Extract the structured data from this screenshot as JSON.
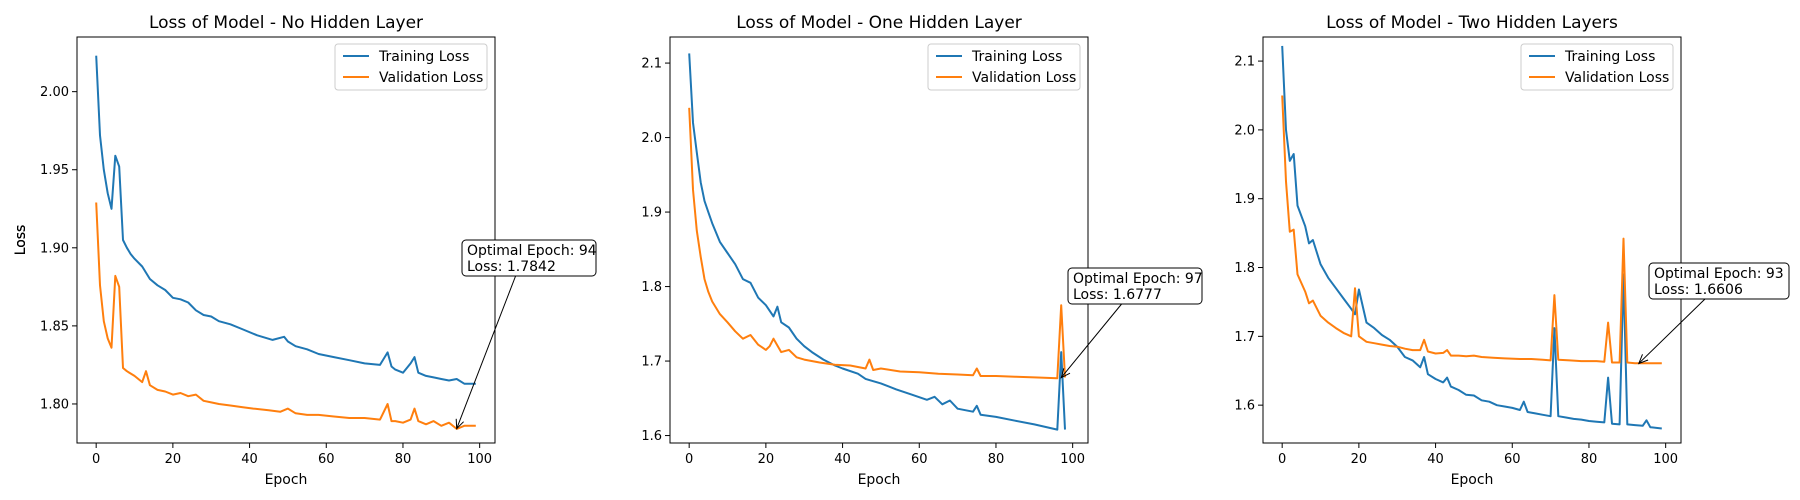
{
  "colors": {
    "training": "#1f77b4",
    "validation": "#ff7f0e"
  },
  "chart_data": [
    {
      "type": "line",
      "title": "Loss of Model - No Hidden Layer",
      "xlabel": "Epoch",
      "ylabel": "Loss",
      "xlim": [
        -5,
        104
      ],
      "ylim": [
        1.775,
        2.035
      ],
      "xticks": [
        0,
        20,
        40,
        60,
        80,
        100
      ],
      "xtick_labels": [
        "0",
        "20",
        "40",
        "60",
        "80",
        "100"
      ],
      "yticks": [
        1.8,
        1.85,
        1.9,
        1.95,
        2.0
      ],
      "ytick_labels": [
        "1.80",
        "1.85",
        "1.90",
        "1.95",
        "2.00"
      ],
      "legend": "top-right",
      "series": [
        {
          "name": "Training Loss",
          "x": [
            0,
            1,
            2,
            3,
            4,
            5,
            6,
            7,
            8,
            9,
            10,
            12,
            14,
            16,
            18,
            20,
            22,
            24,
            26,
            28,
            30,
            32,
            35,
            38,
            42,
            46,
            49,
            50,
            52,
            55,
            58,
            62,
            66,
            70,
            74,
            76,
            77,
            78,
            80,
            82,
            83,
            84,
            86,
            88,
            90,
            92,
            94,
            96,
            99
          ],
          "y": [
            2.023,
            1.972,
            1.95,
            1.935,
            1.925,
            1.959,
            1.952,
            1.905,
            1.9,
            1.896,
            1.893,
            1.888,
            1.88,
            1.876,
            1.873,
            1.868,
            1.867,
            1.865,
            1.86,
            1.857,
            1.856,
            1.853,
            1.851,
            1.848,
            1.844,
            1.841,
            1.843,
            1.84,
            1.837,
            1.835,
            1.832,
            1.83,
            1.828,
            1.826,
            1.825,
            1.833,
            1.824,
            1.822,
            1.82,
            1.826,
            1.83,
            1.82,
            1.818,
            1.817,
            1.816,
            1.815,
            1.816,
            1.813,
            1.813
          ]
        },
        {
          "name": "Validation Loss",
          "x": [
            0,
            1,
            2,
            3,
            4,
            5,
            6,
            7,
            8,
            10,
            12,
            13,
            14,
            16,
            18,
            20,
            22,
            24,
            26,
            28,
            30,
            32,
            35,
            38,
            41,
            45,
            48,
            50,
            52,
            55,
            58,
            62,
            66,
            70,
            74,
            76,
            77,
            78,
            80,
            82,
            83,
            84,
            86,
            88,
            90,
            92,
            94,
            96,
            99
          ],
          "y": [
            1.929,
            1.876,
            1.853,
            1.842,
            1.836,
            1.882,
            1.875,
            1.823,
            1.821,
            1.818,
            1.814,
            1.821,
            1.812,
            1.809,
            1.808,
            1.806,
            1.807,
            1.805,
            1.806,
            1.802,
            1.801,
            1.8,
            1.799,
            1.798,
            1.797,
            1.796,
            1.795,
            1.797,
            1.794,
            1.793,
            1.793,
            1.792,
            1.791,
            1.791,
            1.79,
            1.8,
            1.789,
            1.789,
            1.788,
            1.79,
            1.797,
            1.789,
            1.787,
            1.789,
            1.786,
            1.788,
            1.784,
            1.786,
            1.786
          ]
        }
      ],
      "annotation": {
        "line1": "Optimal Epoch: 94",
        "line2": "Loss: 1.7842",
        "x": 94,
        "y": 1.7842
      }
    },
    {
      "type": "line",
      "title": "Loss of Model - One Hidden Layer",
      "xlabel": "Epoch",
      "ylabel": "Loss",
      "xlim": [
        -5,
        104
      ],
      "ylim": [
        1.59,
        2.135
      ],
      "xticks": [
        0,
        20,
        40,
        60,
        80,
        100
      ],
      "xtick_labels": [
        "0",
        "20",
        "40",
        "60",
        "80",
        "100"
      ],
      "yticks": [
        1.6,
        1.7,
        1.8,
        1.9,
        2.0,
        2.1
      ],
      "ytick_labels": [
        "1.6",
        "1.7",
        "1.8",
        "1.9",
        "2.0",
        "2.1"
      ],
      "legend": "top-right",
      "series": [
        {
          "name": "Training Loss",
          "x": [
            0,
            1,
            2,
            3,
            4,
            5,
            6,
            8,
            10,
            12,
            14,
            16,
            18,
            20,
            22,
            23,
            24,
            26,
            28,
            30,
            32,
            35,
            38,
            40,
            44,
            46,
            48,
            50,
            54,
            58,
            62,
            64,
            66,
            68,
            70,
            72,
            74,
            75,
            76,
            80,
            85,
            90,
            96,
            97,
            98
          ],
          "y": [
            2.113,
            2.02,
            1.98,
            1.94,
            1.915,
            1.9,
            1.885,
            1.86,
            1.845,
            1.83,
            1.81,
            1.805,
            1.785,
            1.775,
            1.76,
            1.773,
            1.752,
            1.745,
            1.73,
            1.72,
            1.712,
            1.702,
            1.694,
            1.69,
            1.683,
            1.676,
            1.673,
            1.67,
            1.662,
            1.655,
            1.648,
            1.652,
            1.642,
            1.647,
            1.636,
            1.634,
            1.632,
            1.64,
            1.628,
            1.625,
            1.62,
            1.615,
            1.608,
            1.712,
            1.608
          ]
        },
        {
          "name": "Validation Loss",
          "x": [
            0,
            1,
            2,
            3,
            4,
            5,
            6,
            8,
            10,
            12,
            14,
            16,
            18,
            20,
            21,
            22,
            24,
            26,
            28,
            30,
            34,
            38,
            42,
            46,
            47,
            48,
            50,
            55,
            60,
            65,
            70,
            74,
            75,
            76,
            80,
            85,
            90,
            96,
            97,
            98
          ],
          "y": [
            2.04,
            1.93,
            1.875,
            1.84,
            1.81,
            1.793,
            1.78,
            1.763,
            1.752,
            1.74,
            1.73,
            1.735,
            1.722,
            1.715,
            1.72,
            1.73,
            1.712,
            1.715,
            1.705,
            1.702,
            1.698,
            1.695,
            1.694,
            1.69,
            1.702,
            1.688,
            1.69,
            1.686,
            1.685,
            1.683,
            1.682,
            1.681,
            1.69,
            1.68,
            1.68,
            1.679,
            1.678,
            1.677,
            1.775,
            1.678
          ]
        }
      ],
      "annotation": {
        "line1": "Optimal Epoch: 97",
        "line2": "Loss: 1.6777",
        "x": 97,
        "y": 1.6777
      }
    },
    {
      "type": "line",
      "title": "Loss of Model - Two Hidden Layers",
      "xlabel": "Epoch",
      "ylabel": "Loss",
      "xlim": [
        -5,
        104
      ],
      "ylim": [
        1.545,
        2.135
      ],
      "xticks": [
        0,
        20,
        40,
        60,
        80,
        100
      ],
      "xtick_labels": [
        "0",
        "20",
        "40",
        "60",
        "80",
        "100"
      ],
      "yticks": [
        1.6,
        1.7,
        1.8,
        1.9,
        2.0,
        2.1
      ],
      "ytick_labels": [
        "1.6",
        "1.7",
        "1.8",
        "1.9",
        "2.0",
        "2.1"
      ],
      "legend": "top-right",
      "series": [
        {
          "name": "Training Loss",
          "x": [
            0,
            1,
            2,
            3,
            4,
            6,
            7,
            8,
            10,
            12,
            14,
            16,
            18,
            19,
            20,
            22,
            24,
            26,
            28,
            30,
            32,
            34,
            36,
            37,
            38,
            40,
            42,
            43,
            44,
            46,
            48,
            50,
            52,
            54,
            56,
            58,
            60,
            62,
            63,
            64,
            66,
            68,
            70,
            71,
            72,
            74,
            76,
            78,
            80,
            82,
            84,
            85,
            86,
            88,
            89,
            90,
            92,
            94,
            95,
            96,
            99
          ],
          "y": [
            2.122,
            2.0,
            1.955,
            1.965,
            1.89,
            1.86,
            1.835,
            1.84,
            1.805,
            1.785,
            1.77,
            1.755,
            1.74,
            1.732,
            1.768,
            1.72,
            1.712,
            1.702,
            1.695,
            1.685,
            1.67,
            1.665,
            1.655,
            1.67,
            1.645,
            1.638,
            1.633,
            1.64,
            1.627,
            1.622,
            1.615,
            1.614,
            1.607,
            1.605,
            1.6,
            1.598,
            1.596,
            1.593,
            1.605,
            1.59,
            1.588,
            1.586,
            1.584,
            1.712,
            1.584,
            1.582,
            1.58,
            1.579,
            1.577,
            1.576,
            1.575,
            1.64,
            1.573,
            1.572,
            1.79,
            1.572,
            1.571,
            1.57,
            1.578,
            1.568,
            1.566
          ]
        },
        {
          "name": "Validation Loss",
          "x": [
            0,
            1,
            2,
            3,
            4,
            6,
            7,
            8,
            10,
            12,
            14,
            16,
            18,
            19,
            20,
            22,
            24,
            26,
            28,
            30,
            32,
            34,
            36,
            37,
            38,
            40,
            42,
            43,
            44,
            46,
            48,
            50,
            52,
            55,
            58,
            62,
            65,
            68,
            70,
            71,
            72,
            75,
            78,
            80,
            82,
            84,
            85,
            86,
            88,
            89,
            90,
            92,
            94,
            96,
            99
          ],
          "y": [
            2.05,
            1.925,
            1.852,
            1.855,
            1.79,
            1.765,
            1.748,
            1.752,
            1.73,
            1.72,
            1.712,
            1.705,
            1.7,
            1.77,
            1.7,
            1.692,
            1.69,
            1.688,
            1.686,
            1.685,
            1.682,
            1.68,
            1.68,
            1.695,
            1.678,
            1.675,
            1.676,
            1.68,
            1.672,
            1.672,
            1.671,
            1.672,
            1.67,
            1.669,
            1.668,
            1.667,
            1.667,
            1.666,
            1.665,
            1.76,
            1.666,
            1.665,
            1.664,
            1.664,
            1.664,
            1.663,
            1.72,
            1.662,
            1.662,
            1.842,
            1.662,
            1.661,
            1.661,
            1.661,
            1.661
          ]
        }
      ],
      "annotation": {
        "line1": "Optimal Epoch: 93",
        "line2": "Loss: 1.6606",
        "x": 93,
        "y": 1.6606
      }
    }
  ]
}
